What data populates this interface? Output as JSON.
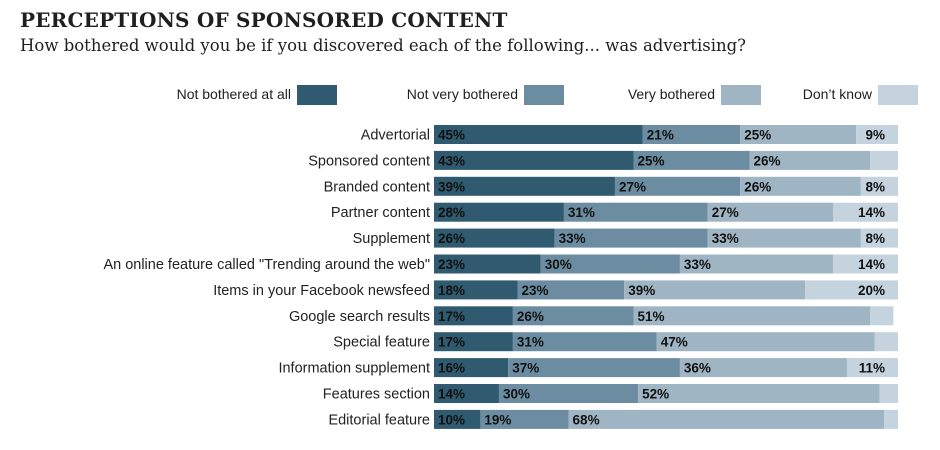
{
  "header": {
    "title": "PERCEPTIONS OF SPONSORED CONTENT",
    "subtitle": "How bothered would you be if you discovered each of the following... was advertising?"
  },
  "colors": [
    "#2f5a70",
    "#6c8da1",
    "#9fb5c4",
    "#c4d3de"
  ],
  "chart_data": {
    "type": "bar",
    "orientation": "horizontal",
    "stacked": true,
    "title": "PERCEPTIONS OF SPONSORED CONTENT",
    "subtitle": "How bothered would you be if you discovered each of the following... was advertising?",
    "legend_position": "top",
    "xlim": [
      0,
      100
    ],
    "categories": [
      "Advertorial",
      "Sponsored content",
      "Branded content",
      "Partner content",
      "Supplement",
      "An online feature called \"Trending around the web\"",
      "Items in your Facebook newsfeed",
      "Google search results",
      "Special feature",
      "Information supplement",
      "Features section",
      "Editorial feature"
    ],
    "series": [
      {
        "name": "Not bothered at all",
        "values": [
          45,
          43,
          39,
          28,
          26,
          23,
          18,
          17,
          17,
          16,
          14,
          10
        ]
      },
      {
        "name": "Not very bothered",
        "values": [
          21,
          25,
          27,
          31,
          33,
          30,
          23,
          26,
          31,
          37,
          30,
          19
        ]
      },
      {
        "name": "Very bothered",
        "values": [
          25,
          26,
          26,
          27,
          33,
          33,
          39,
          51,
          47,
          36,
          52,
          68
        ]
      },
      {
        "name": "Don’t know",
        "values": [
          9,
          6,
          8,
          14,
          8,
          14,
          20,
          5,
          5,
          11,
          4,
          3
        ]
      }
    ],
    "labels": [
      [
        "45%",
        "43%",
        "39%",
        "28%",
        "26%",
        "23%",
        "18%",
        "17%",
        "17%",
        "16%",
        "14%",
        "10%"
      ],
      [
        "21%",
        "25%",
        "27%",
        "31%",
        "33%",
        "30%",
        "23%",
        "26%",
        "31%",
        "37%",
        "30%",
        "19%"
      ],
      [
        "25%",
        "26%",
        "26%",
        "27%",
        "33%",
        "33%",
        "39%",
        "51%",
        "47%",
        "36%",
        "52%",
        "68%"
      ],
      [
        "9%",
        "",
        "8%",
        "14%",
        "8%",
        "14%",
        "20%",
        "",
        "",
        "11%",
        "",
        ""
      ]
    ]
  }
}
